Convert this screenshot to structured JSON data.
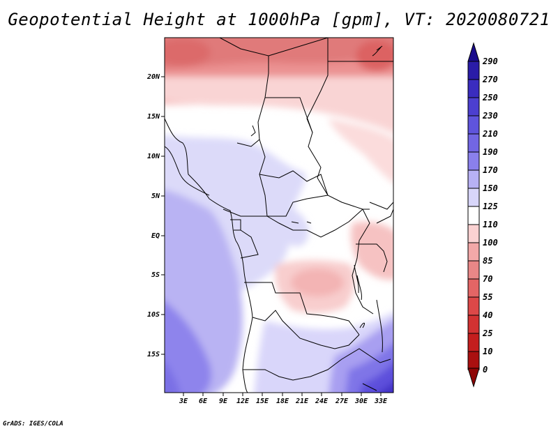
{
  "title": "Geopotential Height at 1000hPa [gpm], VT: 2020080721",
  "credit": "GrADS: IGES/COLA",
  "map": {
    "lat_labels": [
      "20N",
      "15N",
      "10N",
      "5N",
      "EQ",
      "5S",
      "10S",
      "15S"
    ],
    "lon_labels": [
      "3E",
      "6E",
      "9E",
      "12E",
      "15E",
      "18E",
      "21E",
      "24E",
      "27E",
      "30E",
      "33E"
    ]
  },
  "colorbar": {
    "levels": [
      "290",
      "270",
      "250",
      "230",
      "210",
      "190",
      "170",
      "150",
      "125",
      "110",
      "100",
      "85",
      "70",
      "55",
      "40",
      "25",
      "10",
      "0"
    ],
    "colors": [
      "#1a0c8c",
      "#2a1ca8",
      "#3a2cbf",
      "#4c3fd0",
      "#5f54dc",
      "#7266e3",
      "#8a80ec",
      "#b7b1f4",
      "#d8d6fa",
      "#ffffff",
      "#fbd2d2",
      "#f3a8a8",
      "#e98787",
      "#e36565",
      "#dc4848",
      "#d23232",
      "#c41e1e",
      "#aa1010",
      "#8e0505"
    ]
  },
  "chart_data": {
    "type": "heatmap",
    "title": "Geopotential Height at 1000hPa [gpm], VT: 2020080721",
    "variable": "Geopotential Height",
    "level": "1000hPa",
    "units": "gpm",
    "valid_time": "2020080721",
    "colorbar_levels": [
      0,
      10,
      25,
      40,
      55,
      70,
      85,
      100,
      110,
      125,
      150,
      170,
      190,
      210,
      230,
      250,
      270,
      290
    ],
    "lon_ticks": [
      "3E",
      "6E",
      "9E",
      "12E",
      "15E",
      "18E",
      "21E",
      "24E",
      "27E",
      "30E",
      "33E"
    ],
    "lat_ticks": [
      "20N",
      "15N",
      "10N",
      "5N",
      "EQ",
      "5S",
      "10S",
      "15S"
    ]
  }
}
